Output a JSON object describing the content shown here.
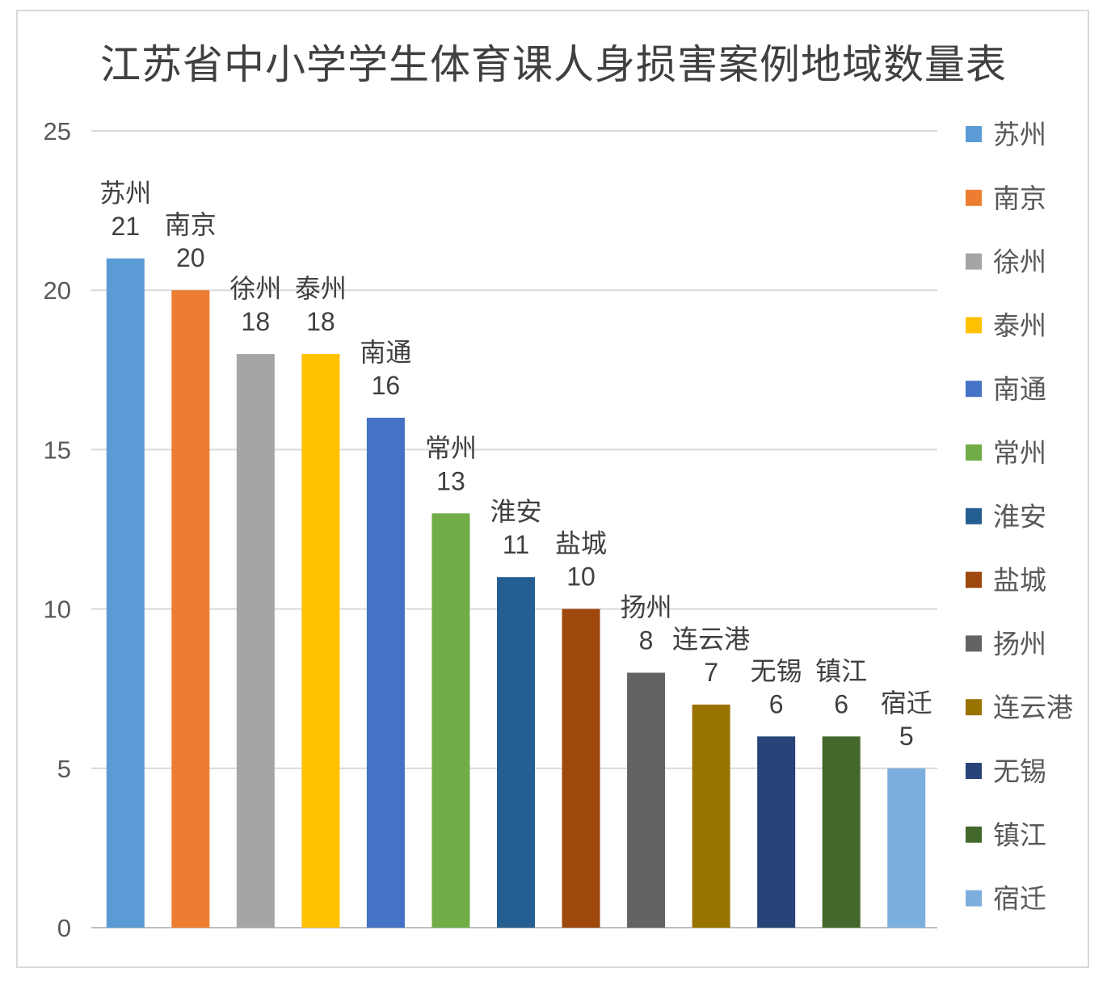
{
  "chart_data": {
    "type": "bar",
    "title": "江苏省中小学学生体育课人身损害案例地域数量表",
    "xlabel": "",
    "ylabel": "",
    "ylim": [
      0,
      25
    ],
    "yticks": [
      "0",
      "5",
      "10",
      "15",
      "20",
      "25"
    ],
    "grid": true,
    "legend_position": "right",
    "categories": [
      "苏州",
      "南京",
      "徐州",
      "泰州",
      "南通",
      "常州",
      "淮安",
      "盐城",
      "扬州",
      "连云港",
      "无锡",
      "镇江",
      "宿迁"
    ],
    "values": [
      21,
      20,
      18,
      18,
      16,
      13,
      11,
      10,
      8,
      7,
      6,
      6,
      5
    ],
    "colors": [
      "#5b9bd5",
      "#ed7d31",
      "#a5a5a5",
      "#ffc000",
      "#4472c4",
      "#70ad47",
      "#255e91",
      "#9e480e",
      "#636363",
      "#997300",
      "#264478",
      "#43682b",
      "#7cafdd"
    ]
  }
}
